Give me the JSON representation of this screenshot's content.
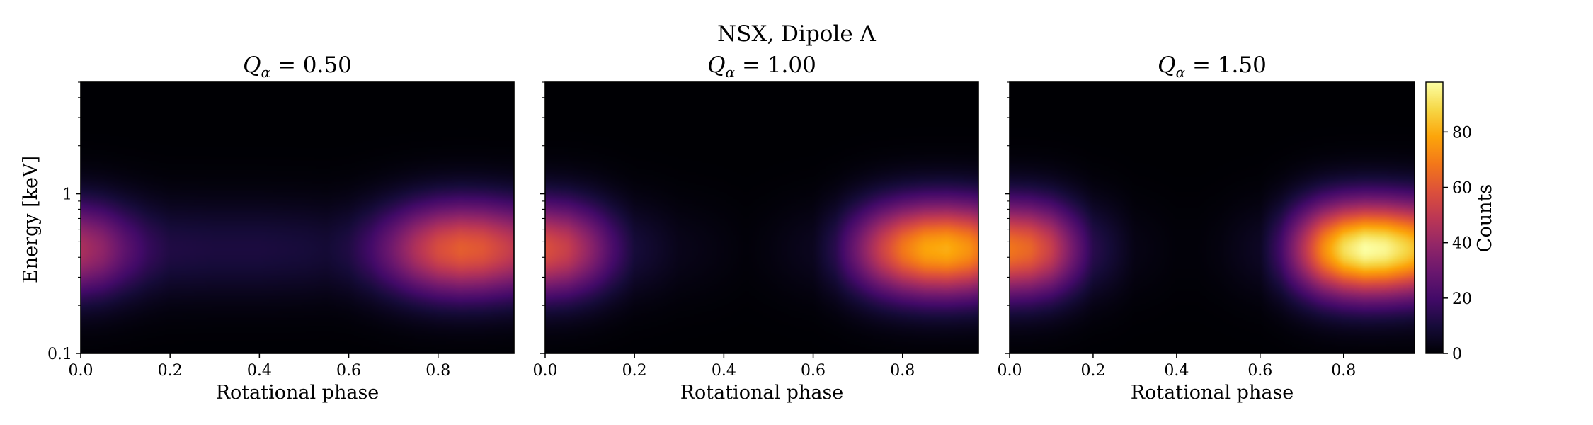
{
  "chart_data": {
    "type": "heatmap",
    "suptitle": "NSX, Dipole Λ",
    "xlabel": "Rotational phase",
    "ylabel": "Energy [keV]",
    "xlim": [
      0.0,
      0.97
    ],
    "ylim": [
      0.1,
      5.0
    ],
    "yscale": "log",
    "x_ticks": [
      0.0,
      0.2,
      0.4,
      0.6,
      0.8
    ],
    "x_tick_labels": [
      "0.0",
      "0.2",
      "0.4",
      "0.6",
      "0.8"
    ],
    "y_ticks": [
      0.1,
      1.0
    ],
    "y_tick_labels": [
      "0.1",
      "1"
    ],
    "colormap": "inferno",
    "colorbar": {
      "label": "Counts",
      "range": [
        0,
        98
      ],
      "ticks": [
        0,
        20,
        40,
        60,
        80
      ],
      "tick_labels": [
        "0",
        "20",
        "40",
        "60",
        "80"
      ]
    },
    "peak_energy_keV": 0.45,
    "energy_width_dex": 0.21,
    "panels": [
      {
        "title": "Q_α = 0.50",
        "title_var": "Q",
        "title_sub": "α",
        "title_eq": " = ",
        "title_val": "0.50",
        "peak_counts": 62,
        "phase_profile": {
          "phase": [
            0.0,
            0.05,
            0.1,
            0.15,
            0.2,
            0.3,
            0.4,
            0.5,
            0.55,
            0.6,
            0.65,
            0.7,
            0.75,
            0.8,
            0.85,
            0.9,
            0.95,
            0.97
          ],
          "counts": [
            45,
            38,
            26,
            17,
            12,
            11,
            11,
            10,
            9,
            12,
            20,
            32,
            46,
            57,
            62,
            60,
            53,
            50
          ]
        }
      },
      {
        "title": "Q_α = 1.00",
        "title_var": "Q",
        "title_sub": "α",
        "title_eq": " = ",
        "title_val": "1.00",
        "peak_counts": 80,
        "phase_profile": {
          "phase": [
            0.0,
            0.05,
            0.1,
            0.15,
            0.2,
            0.3,
            0.4,
            0.45,
            0.5,
            0.6,
            0.65,
            0.7,
            0.75,
            0.8,
            0.85,
            0.9,
            0.95,
            0.97
          ],
          "counts": [
            58,
            52,
            38,
            22,
            10,
            4,
            2,
            1,
            2,
            5,
            14,
            32,
            52,
            68,
            78,
            80,
            74,
            68
          ]
        }
      },
      {
        "title": "Q_α = 1.50",
        "title_var": "Q",
        "title_sub": "α",
        "title_eq": " = ",
        "title_val": "1.50",
        "peak_counts": 98,
        "phase_profile": {
          "phase": [
            0.0,
            0.05,
            0.1,
            0.15,
            0.2,
            0.3,
            0.4,
            0.45,
            0.5,
            0.6,
            0.65,
            0.7,
            0.75,
            0.8,
            0.85,
            0.9,
            0.95,
            0.97
          ],
          "counts": [
            68,
            64,
            52,
            32,
            14,
            3,
            1,
            1,
            2,
            6,
            20,
            45,
            72,
            90,
            98,
            96,
            88,
            84
          ]
        }
      }
    ]
  }
}
